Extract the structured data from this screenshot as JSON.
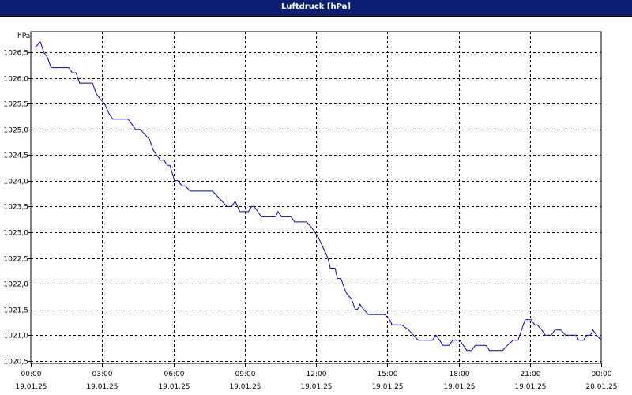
{
  "window": {
    "title": "Luftdruck [hPa]"
  },
  "chart_data": {
    "type": "line",
    "title": "Luftdruck [hPa]",
    "ylabel": "hPa",
    "ylim": [
      1020.45,
      1026.9
    ],
    "xlim": [
      0,
      24
    ],
    "grid": true,
    "y_ticks": [
      "1020,5",
      "1021,0",
      "1021,5",
      "1022,0",
      "1022,5",
      "1023,0",
      "1023,5",
      "1024,0",
      "1024,5",
      "1025,0",
      "1025,5",
      "1026,0",
      "1026,5"
    ],
    "y_tick_values": [
      1020.5,
      1021.0,
      1021.5,
      1022.0,
      1022.5,
      1023.0,
      1023.5,
      1024.0,
      1024.5,
      1025.0,
      1025.5,
      1026.0,
      1026.5
    ],
    "x_ticks": [
      {
        "hours": 0,
        "time": "00:00",
        "date": "19.01.25"
      },
      {
        "hours": 3,
        "time": "03:00",
        "date": "19.01.25"
      },
      {
        "hours": 6,
        "time": "06:00",
        "date": "19.01.25"
      },
      {
        "hours": 9,
        "time": "09:00",
        "date": "19.01.25"
      },
      {
        "hours": 12,
        "time": "12:00",
        "date": "19.01.25"
      },
      {
        "hours": 15,
        "time": "15:00",
        "date": "19.01.25"
      },
      {
        "hours": 18,
        "time": "18:00",
        "date": "19.01.25"
      },
      {
        "hours": 21,
        "time": "21:00",
        "date": "19.01.25"
      },
      {
        "hours": 24,
        "time": "00:00",
        "date": "20.01.25"
      }
    ],
    "series": [
      {
        "color": "#0000cc",
        "points": [
          [
            0.0,
            1026.6
          ],
          [
            0.2,
            1026.6
          ],
          [
            0.4,
            1026.7
          ],
          [
            0.55,
            1026.5
          ],
          [
            0.7,
            1026.4
          ],
          [
            0.85,
            1026.2
          ],
          [
            1.2,
            1026.2
          ],
          [
            1.5,
            1026.2
          ],
          [
            1.6,
            1026.2
          ],
          [
            1.75,
            1026.1
          ],
          [
            1.9,
            1026.1
          ],
          [
            2.05,
            1025.9
          ],
          [
            2.3,
            1025.9
          ],
          [
            2.6,
            1025.9
          ],
          [
            2.75,
            1025.7
          ],
          [
            2.9,
            1025.6
          ],
          [
            3.1,
            1025.5
          ],
          [
            3.3,
            1025.3
          ],
          [
            3.45,
            1025.2
          ],
          [
            3.8,
            1025.2
          ],
          [
            4.1,
            1025.2
          ],
          [
            4.25,
            1025.1
          ],
          [
            4.4,
            1025.0
          ],
          [
            4.6,
            1025.0
          ],
          [
            4.8,
            1024.9
          ],
          [
            5.0,
            1024.8
          ],
          [
            5.15,
            1024.6
          ],
          [
            5.3,
            1024.5
          ],
          [
            5.45,
            1024.4
          ],
          [
            5.6,
            1024.4
          ],
          [
            5.75,
            1024.3
          ],
          [
            5.85,
            1024.3
          ],
          [
            6.05,
            1024.0
          ],
          [
            6.2,
            1024.0
          ],
          [
            6.35,
            1023.9
          ],
          [
            6.5,
            1023.9
          ],
          [
            6.7,
            1023.8
          ],
          [
            7.1,
            1023.8
          ],
          [
            7.5,
            1023.8
          ],
          [
            7.65,
            1023.8
          ],
          [
            7.85,
            1023.7
          ],
          [
            8.05,
            1023.6
          ],
          [
            8.25,
            1023.5
          ],
          [
            8.45,
            1023.5
          ],
          [
            8.6,
            1023.6
          ],
          [
            8.7,
            1023.5
          ],
          [
            8.8,
            1023.4
          ],
          [
            9.0,
            1023.4
          ],
          [
            9.15,
            1023.4
          ],
          [
            9.3,
            1023.5
          ],
          [
            9.4,
            1023.5
          ],
          [
            9.55,
            1023.4
          ],
          [
            9.7,
            1023.3
          ],
          [
            10.05,
            1023.3
          ],
          [
            10.3,
            1023.3
          ],
          [
            10.4,
            1023.4
          ],
          [
            10.55,
            1023.3
          ],
          [
            10.8,
            1023.3
          ],
          [
            10.95,
            1023.3
          ],
          [
            11.1,
            1023.2
          ],
          [
            11.6,
            1023.2
          ],
          [
            11.8,
            1023.1
          ],
          [
            11.95,
            1023.0
          ],
          [
            12.1,
            1022.9
          ],
          [
            12.3,
            1022.7
          ],
          [
            12.4,
            1022.6
          ],
          [
            12.5,
            1022.5
          ],
          [
            12.6,
            1022.3
          ],
          [
            12.8,
            1022.3
          ],
          [
            12.9,
            1022.1
          ],
          [
            13.05,
            1022.1
          ],
          [
            13.2,
            1021.9
          ],
          [
            13.3,
            1021.8
          ],
          [
            13.5,
            1021.7
          ],
          [
            13.65,
            1021.5
          ],
          [
            13.75,
            1021.5
          ],
          [
            13.85,
            1021.6
          ],
          [
            14.0,
            1021.5
          ],
          [
            14.2,
            1021.4
          ],
          [
            14.6,
            1021.4
          ],
          [
            14.9,
            1021.4
          ],
          [
            15.1,
            1021.3
          ],
          [
            15.2,
            1021.2
          ],
          [
            15.6,
            1021.2
          ],
          [
            15.9,
            1021.1
          ],
          [
            16.1,
            1021.0
          ],
          [
            16.3,
            1020.9
          ],
          [
            16.6,
            1020.9
          ],
          [
            16.9,
            1020.9
          ],
          [
            17.05,
            1021.0
          ],
          [
            17.2,
            1020.9
          ],
          [
            17.35,
            1020.8
          ],
          [
            17.6,
            1020.8
          ],
          [
            17.75,
            1020.9
          ],
          [
            18.05,
            1020.9
          ],
          [
            18.2,
            1020.8
          ],
          [
            18.35,
            1020.7
          ],
          [
            18.55,
            1020.7
          ],
          [
            18.7,
            1020.8
          ],
          [
            18.9,
            1020.8
          ],
          [
            19.0,
            1020.8
          ],
          [
            19.15,
            1020.8
          ],
          [
            19.3,
            1020.7
          ],
          [
            19.6,
            1020.7
          ],
          [
            19.85,
            1020.7
          ],
          [
            20.05,
            1020.8
          ],
          [
            20.3,
            1020.9
          ],
          [
            20.5,
            1020.9
          ],
          [
            20.65,
            1021.1
          ],
          [
            20.8,
            1021.3
          ],
          [
            21.05,
            1021.3
          ],
          [
            21.2,
            1021.2
          ],
          [
            21.3,
            1021.2
          ],
          [
            21.5,
            1021.1
          ],
          [
            21.65,
            1021.0
          ],
          [
            21.9,
            1021.0
          ],
          [
            22.05,
            1021.1
          ],
          [
            22.3,
            1021.1
          ],
          [
            22.5,
            1021.0
          ],
          [
            22.75,
            1021.0
          ],
          [
            22.95,
            1021.0
          ],
          [
            23.05,
            1020.9
          ],
          [
            23.25,
            1020.9
          ],
          [
            23.4,
            1021.0
          ],
          [
            23.55,
            1021.0
          ],
          [
            23.65,
            1021.1
          ],
          [
            23.8,
            1021.0
          ],
          [
            24.0,
            1020.9
          ]
        ]
      }
    ]
  }
}
